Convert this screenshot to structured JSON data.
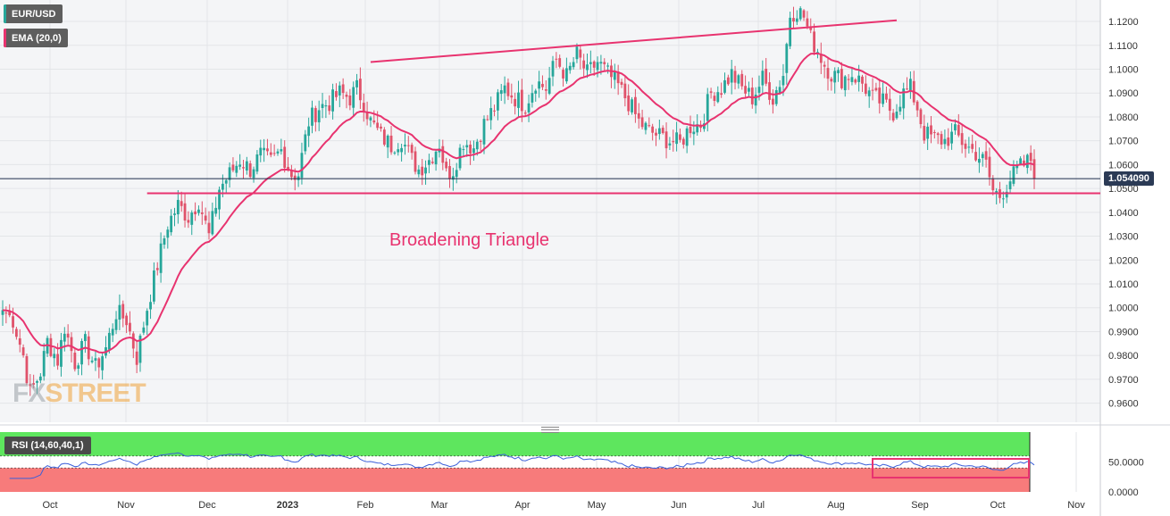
{
  "legend": {
    "symbol": "EUR/USD",
    "ema": "EMA (20,0)",
    "symbol_color": "#26a69a",
    "ema_color": "#e8336f"
  },
  "last_price_label": "1.054090",
  "annotation": "Broadening Triangle",
  "watermark": {
    "left": "FX",
    "right": "STREET"
  },
  "rsi": {
    "label": "RSI (14,60,40,1)",
    "upper_level": 60,
    "lower_level": 40,
    "tick_labels": [
      "50.0000",
      "0.0000"
    ],
    "upper_zone_color": "#5ee65e",
    "lower_zone_color": "#f77b7b",
    "line_color": "#3b5fd9"
  },
  "chart_data": {
    "type": "candlestick",
    "symbol": "EUR/USD",
    "ylim": [
      0.952,
      1.129
    ],
    "y_tick_labels": [
      "1.1200",
      "1.1100",
      "1.1000",
      "1.0900",
      "1.0800",
      "1.0700",
      "1.0600",
      "1.0500",
      "1.0400",
      "1.0300",
      "1.0200",
      "1.0100",
      "1.0000",
      "0.9900",
      "0.9800",
      "0.9700",
      "0.9600"
    ],
    "x_tick_labels": [
      "Oct",
      "Nov",
      "Dec",
      "2023",
      "Feb",
      "Mar",
      "Apr",
      "May",
      "Jun",
      "Jul",
      "Aug",
      "Sep",
      "Oct",
      "Nov"
    ],
    "colors": {
      "up": "#26a69a",
      "down": "#e0526a",
      "ema": "#e8336f",
      "trendline": "#e8336f",
      "price_line": "#1f2d4d"
    },
    "last_price": 1.05409,
    "close_anchors": [
      [
        0,
        0.999
      ],
      [
        3,
        0.995
      ],
      [
        6,
        0.98
      ],
      [
        8,
        0.964
      ],
      [
        11,
        0.973
      ],
      [
        13,
        0.986
      ],
      [
        16,
        0.978
      ],
      [
        18,
        0.992
      ],
      [
        21,
        0.977
      ],
      [
        24,
        0.985
      ],
      [
        27,
        0.975
      ],
      [
        30,
        0.983
      ],
      [
        33,
        0.998
      ],
      [
        36,
        0.995
      ],
      [
        39,
        0.979
      ],
      [
        42,
        1.0
      ],
      [
        45,
        1.018
      ],
      [
        48,
        1.035
      ],
      [
        51,
        1.043
      ],
      [
        54,
        1.038
      ],
      [
        57,
        1.045
      ],
      [
        60,
        1.03
      ],
      [
        63,
        1.05
      ],
      [
        66,
        1.056
      ],
      [
        69,
        1.062
      ],
      [
        72,
        1.058
      ],
      [
        75,
        1.064
      ],
      [
        78,
        1.061
      ],
      [
        81,
        1.066
      ],
      [
        84,
        1.056
      ],
      [
        86,
        1.056
      ],
      [
        89,
        1.078
      ],
      [
        92,
        1.084
      ],
      [
        95,
        1.086
      ],
      [
        98,
        1.09
      ],
      [
        101,
        1.088
      ],
      [
        103,
        1.092
      ],
      [
        105,
        1.086
      ],
      [
        107,
        1.078
      ],
      [
        110,
        1.072
      ],
      [
        113,
        1.068
      ],
      [
        116,
        1.071
      ],
      [
        119,
        1.062
      ],
      [
        121,
        1.058
      ],
      [
        124,
        1.062
      ],
      [
        127,
        1.069
      ],
      [
        129,
        1.056
      ],
      [
        131,
        1.058
      ],
      [
        134,
        1.07
      ],
      [
        137,
        1.067
      ],
      [
        140,
        1.077
      ],
      [
        143,
        1.084
      ],
      [
        146,
        1.092
      ],
      [
        149,
        1.088
      ],
      [
        152,
        1.085
      ],
      [
        155,
        1.095
      ],
      [
        158,
        1.092
      ],
      [
        161,
        1.104
      ],
      [
        164,
        1.097
      ],
      [
        167,
        1.106
      ],
      [
        170,
        1.098
      ],
      [
        173,
        1.103
      ],
      [
        176,
        1.098
      ],
      [
        179,
        1.093
      ],
      [
        182,
        1.086
      ],
      [
        185,
        1.078
      ],
      [
        188,
        1.074
      ],
      [
        191,
        1.072
      ],
      [
        194,
        1.07
      ],
      [
        197,
        1.069
      ],
      [
        200,
        1.076
      ],
      [
        203,
        1.077
      ],
      [
        206,
        1.09
      ],
      [
        209,
        1.092
      ],
      [
        212,
        1.098
      ],
      [
        215,
        1.092
      ],
      [
        218,
        1.088
      ],
      [
        221,
        1.096
      ],
      [
        224,
        1.088
      ],
      [
        227,
        1.098
      ],
      [
        229,
        1.123
      ],
      [
        231,
        1.125
      ],
      [
        233,
        1.122
      ],
      [
        235,
        1.113
      ],
      [
        237,
        1.108
      ],
      [
        239,
        1.102
      ],
      [
        241,
        1.098
      ],
      [
        244,
        1.096
      ],
      [
        247,
        1.098
      ],
      [
        250,
        1.094
      ],
      [
        253,
        1.088
      ],
      [
        256,
        1.086
      ],
      [
        259,
        1.082
      ],
      [
        262,
        1.09
      ],
      [
        264,
        1.092
      ],
      [
        266,
        1.084
      ],
      [
        268,
        1.073
      ],
      [
        271,
        1.071
      ],
      [
        274,
        1.07
      ],
      [
        277,
        1.073
      ],
      [
        280,
        1.068
      ],
      [
        283,
        1.065
      ],
      [
        286,
        1.06
      ],
      [
        288,
        1.049
      ],
      [
        290,
        1.047
      ],
      [
        293,
        1.054
      ],
      [
        296,
        1.059
      ],
      [
        299,
        1.062
      ],
      [
        300,
        1.0541
      ]
    ],
    "trendlines": [
      {
        "from": [
          107,
          1.103
        ],
        "to": [
          260,
          1.1205
        ]
      },
      {
        "from": [
          42,
          1.048
        ],
        "to": [
          325,
          1.048
        ]
      }
    ],
    "ema_period": 20,
    "rsi_period": 14
  }
}
